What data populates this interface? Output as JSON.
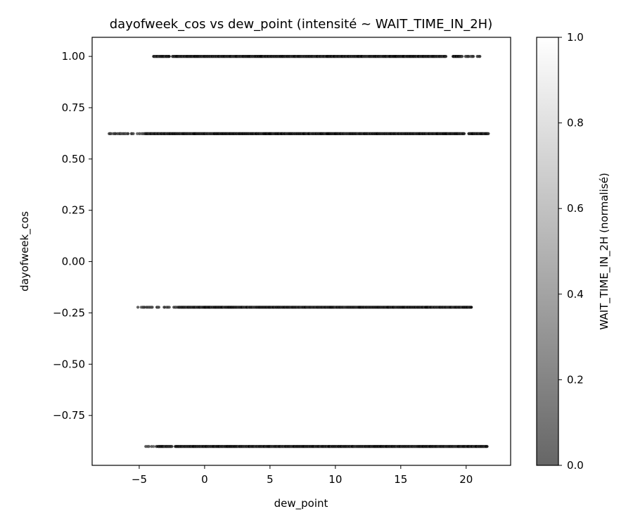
{
  "chart_data": {
    "type": "scatter",
    "title": "dayofweek_cos vs dew_point (intensité ~ WAIT_TIME_IN_2H)",
    "xlabel": "dew_point",
    "ylabel": "dayofweek_cos",
    "xlim": [
      -8.6,
      23.4
    ],
    "ylim": [
      -0.993,
      1.093
    ],
    "xticks": [
      -5,
      0,
      5,
      10,
      15,
      20
    ],
    "xtick_labels": [
      "−5",
      "0",
      "5",
      "10",
      "15",
      "20"
    ],
    "yticks": [
      1.0,
      0.75,
      0.5,
      0.25,
      0.0,
      -0.25,
      -0.5,
      -0.75
    ],
    "ytick_labels": [
      "1.00",
      "0.75",
      "0.50",
      "0.25",
      "0.00",
      "−0.25",
      "−0.50",
      "−0.75"
    ],
    "grid": false,
    "series": [
      {
        "y": 1.0,
        "x_min": -3.9,
        "x_max": 21.3,
        "gaps": [
          [
            -2.7,
            -2.5
          ],
          [
            18.5,
            19.0
          ]
        ],
        "sparse_right_end": 19.7
      },
      {
        "y": 0.6235,
        "x_min": -7.3,
        "x_max": 21.7,
        "gaps": [
          [
            19.9,
            20.2
          ]
        ],
        "sparse_left_end": -4.6
      },
      {
        "y": -0.2225,
        "x_min": -5.1,
        "x_max": 20.4,
        "gaps": [
          [
            -3.4,
            -3.2
          ],
          [
            -2.7,
            -2.4
          ]
        ],
        "sparse_left_end": -2.0
      },
      {
        "y": -0.901,
        "x_min": -4.5,
        "x_max": 21.6,
        "gaps": [
          [
            -2.5,
            -2.3
          ]
        ],
        "sparse_left_end": -3.6
      }
    ],
    "colorbar": {
      "label": "WAIT_TIME_IN_2H (normalisé)",
      "range": [
        0.0,
        1.0
      ],
      "ticks": [
        0.0,
        0.2,
        0.4,
        0.6,
        0.8,
        1.0
      ],
      "tick_labels": [
        "0.0",
        "0.2",
        "0.4",
        "0.6",
        "0.8",
        "1.0"
      ],
      "colormap": "greys (low = dark, high = white)",
      "low_color": "#666666",
      "high_color": "#ffffff"
    },
    "point_color_dark": "#111111",
    "point_color_mid": "#555555"
  }
}
